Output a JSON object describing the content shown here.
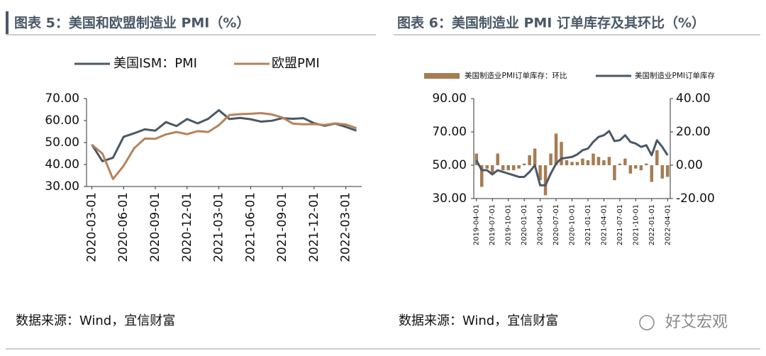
{
  "header": {
    "left_title": "图表 5：美国和欧盟制造业 PMI（%）",
    "right_title": "图表 6：美国制造业 PMI 订单库存及其环比（%）"
  },
  "chart_data": [
    {
      "type": "line",
      "legend": "top",
      "categories": [
        "2020-03-01",
        null,
        null,
        "2020-06-01",
        null,
        null,
        "2020-09-01",
        null,
        null,
        "2020-12-01",
        null,
        null,
        "2021-03-01",
        null,
        null,
        "2021-06-01",
        null,
        null,
        "2021-09-01",
        null,
        null,
        "2021-12-01",
        null,
        null,
        "2022-03-01",
        null
      ],
      "series": [
        {
          "name": "美国ISM：PMI",
          "color": "#4a5866",
          "values": [
            49.1,
            41.5,
            43.1,
            52.6,
            54.2,
            56.0,
            55.4,
            59.3,
            57.5,
            60.7,
            58.7,
            60.8,
            64.7,
            60.7,
            61.2,
            60.6,
            59.5,
            59.9,
            61.1,
            60.8,
            61.1,
            58.8,
            57.6,
            58.6,
            57.1,
            55.4
          ]
        },
        {
          "name": "欧盟PMI",
          "color": "#b5835a",
          "values": [
            49.0,
            45.0,
            33.4,
            39.4,
            47.4,
            51.8,
            51.7,
            53.7,
            54.8,
            53.8,
            55.2,
            54.8,
            57.9,
            62.5,
            62.9,
            63.1,
            63.4,
            62.8,
            61.4,
            58.6,
            58.3,
            58.4,
            58.0,
            58.7,
            58.2,
            56.5
          ]
        }
      ],
      "ylim": [
        30,
        70
      ],
      "yticks": [
        {
          "value": 30,
          "label": "30.00"
        },
        {
          "value": 40,
          "label": "40.00"
        },
        {
          "value": 50,
          "label": "50.00"
        },
        {
          "value": 60,
          "label": "60.00"
        },
        {
          "value": 70,
          "label": "70.00"
        }
      ]
    },
    {
      "type": "bar",
      "legend": "top",
      "categories": [
        "2019-04-01",
        null,
        null,
        "2019-07-01",
        null,
        null,
        "2019-10-01",
        null,
        null,
        "2020-01-01",
        null,
        null,
        "2020-04-01",
        null,
        null,
        "2020-07-01",
        null,
        null,
        "2020-10-01",
        null,
        null,
        "2021-01-01",
        null,
        null,
        "2021-04-01",
        null,
        null,
        "2021-07-01",
        null,
        null,
        "2021-10-01",
        null,
        null,
        "2022-01-01",
        null,
        null,
        "2022-04-01"
      ],
      "series": [
        {
          "name": "美国制造业PMI订单库存：环比",
          "type": "bar",
          "axis": "y2",
          "color": "#a67c52",
          "values": [
            7,
            -13,
            -2,
            -5,
            7,
            -3,
            -3,
            -3,
            -2,
            1,
            6,
            10,
            -9,
            -18,
            7,
            19,
            14,
            3,
            2,
            2,
            4,
            3,
            7,
            5,
            3,
            5,
            -9,
            1,
            4,
            -5,
            -2,
            -3,
            1,
            -10,
            9,
            -8,
            -7
          ]
        },
        {
          "name": "美国制造业PMI订单库存",
          "type": "line",
          "color": "#4a5866",
          "values": [
            53,
            47,
            47,
            44.5,
            47,
            46,
            45,
            44,
            43,
            43,
            46,
            50,
            38,
            38,
            45,
            51,
            54,
            54.5,
            55,
            56.5,
            59,
            60,
            64,
            67,
            68,
            70.5,
            64.5,
            65,
            68,
            64,
            63,
            61,
            62,
            56,
            65,
            61,
            56
          ]
        }
      ],
      "ylim": [
        30,
        90
      ],
      "yticks": [
        {
          "value": 30,
          "label": "30.00"
        },
        {
          "value": 50,
          "label": "50.00"
        },
        {
          "value": 70,
          "label": "70.00"
        },
        {
          "value": 90,
          "label": "90.00"
        }
      ],
      "y2lim": [
        -20,
        40
      ],
      "y2ticks": [
        {
          "value": -20,
          "label": "-20.00"
        },
        {
          "value": 0,
          "label": "0.00"
        },
        {
          "value": 20,
          "label": "20.00"
        },
        {
          "value": 40,
          "label": "40.00"
        }
      ]
    }
  ],
  "footer": {
    "left_source": "数据来源：Wind，宜信财富",
    "right_source": "数据来源：Wind，宜信财富",
    "watermark": "好艾宏观"
  }
}
